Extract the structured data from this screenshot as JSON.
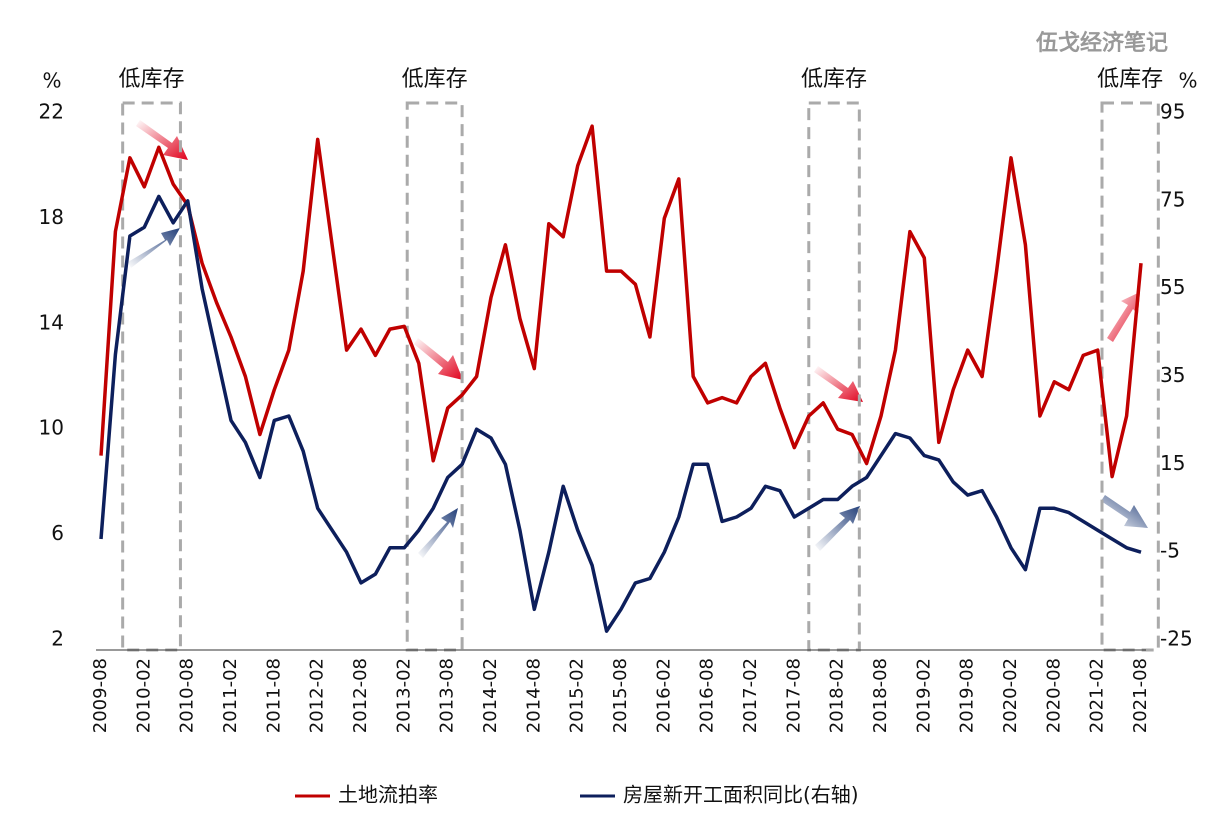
{
  "chart_data": {
    "type": "line",
    "watermark": "伍戈经济笔记",
    "ylabel": "%",
    "y2label": "%",
    "annotations": [
      "低库存",
      "低库存",
      "低库存",
      "低库存"
    ],
    "categories": [
      "2009-08",
      null,
      null,
      "2010-02",
      null,
      null,
      "2010-08",
      null,
      null,
      "2011-02",
      null,
      null,
      "2011-08",
      null,
      null,
      "2012-02",
      null,
      null,
      "2012-08",
      null,
      null,
      "2013-02",
      null,
      null,
      "2013-08",
      null,
      null,
      "2014-02",
      null,
      null,
      "2014-08",
      null,
      null,
      "2015-02",
      null,
      null,
      "2015-08",
      null,
      null,
      "2016-02",
      null,
      null,
      "2016-08",
      null,
      null,
      "2017-02",
      null,
      null,
      "2017-08",
      null,
      null,
      "2018-02",
      null,
      null,
      "2018-08",
      null,
      null,
      "2019-02",
      null,
      null,
      "2019-08",
      null,
      null,
      "2020-02",
      null,
      null,
      "2020-08",
      null,
      null,
      "2021-02",
      null,
      null,
      "2021-08"
    ],
    "series": [
      {
        "name": "土地流拍率",
        "color": "#c00000",
        "values": [
          9,
          17.5,
          20.3,
          19.2,
          20.7,
          19.3,
          18.5,
          16.3,
          14.8,
          13.5,
          12,
          9.8,
          11.5,
          13,
          16,
          21,
          17,
          13,
          13.8,
          12.8,
          13.8,
          13.9,
          12.5,
          8.8,
          10.8,
          11.3,
          12,
          15,
          17,
          14.2,
          12.3,
          17.8,
          17.3,
          20,
          21.5,
          16,
          16,
          15.5,
          13.5,
          18,
          19.5,
          12,
          11,
          11.2,
          11,
          12,
          12.5,
          10.8,
          9.3,
          10.5,
          11,
          10,
          9.8,
          8.7,
          10.5,
          13,
          17.5,
          16.5,
          9.5,
          11.5,
          13,
          12,
          16,
          20.3,
          17,
          10.5,
          11.8,
          11.5,
          12.8,
          13,
          8.2,
          10.5,
          16.3
        ]
      },
      {
        "name": "房屋新开工面积同比(右轴)",
        "color": "#0d1f5c",
        "axis": "y2",
        "values": [
          -2,
          40,
          67,
          69,
          76,
          70,
          75,
          55,
          40,
          25,
          20,
          12,
          25,
          26,
          18,
          5,
          0,
          -5,
          -12,
          -10,
          -4,
          -4,
          0,
          5,
          12,
          15,
          23,
          21,
          15,
          0,
          -18,
          -5,
          10,
          0,
          -8,
          -23,
          -18,
          -12,
          -11,
          -5,
          3,
          15,
          15,
          2,
          3,
          5,
          10,
          9,
          3,
          5,
          7,
          7,
          10,
          12,
          17,
          22,
          21,
          17,
          16,
          11,
          8,
          9,
          3,
          -4,
          -9,
          5,
          5,
          4,
          2,
          0,
          -2,
          -4,
          -5
        ]
      }
    ],
    "ylim": [
      2,
      22
    ],
    "yticks": [
      2,
      6,
      10,
      14,
      18,
      22
    ],
    "y2lim": [
      -25,
      95
    ],
    "y2ticks": [
      -25,
      -5,
      15,
      35,
      55,
      75,
      95
    ]
  }
}
